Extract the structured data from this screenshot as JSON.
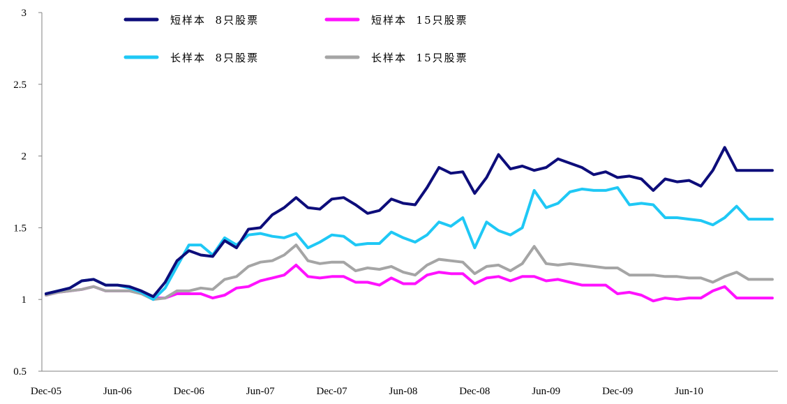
{
  "chart_data": {
    "type": "line",
    "title": "",
    "xlabel": "",
    "ylabel": "",
    "ylim": [
      0.5,
      3
    ],
    "yticks": [
      "3",
      "2.5",
      "2",
      "1.5",
      "1",
      "0.5"
    ],
    "xticks": [
      "Dec-05",
      "Jun-06",
      "Dec-06",
      "Jun-07",
      "Dec-07",
      "Jun-08",
      "Dec-08",
      "Jun-09",
      "Dec-09",
      "Jun-10"
    ],
    "grid": false,
    "legend_position": "top",
    "x": [
      0,
      1,
      2,
      3,
      4,
      5,
      6,
      7,
      8,
      9,
      10,
      11,
      12,
      13,
      14,
      15,
      16,
      17,
      18,
      19,
      20,
      21,
      22,
      23,
      24,
      25,
      26,
      27,
      28,
      29,
      30,
      31,
      32,
      33,
      34,
      35,
      36,
      37,
      38,
      39,
      40,
      41,
      42,
      43,
      44,
      45,
      46,
      47,
      48,
      49,
      50,
      51,
      52,
      53,
      54,
      55,
      56,
      57,
      58,
      59,
      60,
      61
    ],
    "series": [
      {
        "name": "短样本  8只股票",
        "color": "#0d0d7a",
        "values": [
          1.04,
          1.06,
          1.08,
          1.13,
          1.14,
          1.1,
          1.1,
          1.09,
          1.06,
          1.02,
          1.12,
          1.27,
          1.34,
          1.31,
          1.3,
          1.41,
          1.36,
          1.49,
          1.5,
          1.59,
          1.64,
          1.71,
          1.64,
          1.63,
          1.7,
          1.71,
          1.66,
          1.6,
          1.62,
          1.7,
          1.67,
          1.66,
          1.78,
          1.92,
          1.88,
          1.89,
          1.74,
          1.85,
          2.01,
          1.91,
          1.93,
          1.9,
          1.92,
          1.98,
          1.95,
          1.92,
          1.87,
          1.89,
          1.85,
          1.86,
          1.84,
          1.76,
          1.84,
          1.82,
          1.83,
          1.79,
          1.9,
          2.06,
          1.9,
          1.9,
          1.9,
          1.9
        ]
      },
      {
        "name": "短样本  15只股票",
        "color": "#ff12ff",
        "values": [
          1.03,
          1.05,
          1.06,
          1.07,
          1.09,
          1.06,
          1.06,
          1.06,
          1.05,
          1.01,
          1.01,
          1.04,
          1.04,
          1.04,
          1.01,
          1.03,
          1.08,
          1.09,
          1.13,
          1.15,
          1.17,
          1.24,
          1.16,
          1.15,
          1.16,
          1.16,
          1.12,
          1.12,
          1.1,
          1.15,
          1.11,
          1.11,
          1.17,
          1.19,
          1.18,
          1.18,
          1.11,
          1.15,
          1.16,
          1.13,
          1.16,
          1.16,
          1.13,
          1.14,
          1.12,
          1.1,
          1.1,
          1.1,
          1.04,
          1.05,
          1.03,
          0.99,
          1.01,
          1.0,
          1.01,
          1.01,
          1.06,
          1.09,
          1.01,
          1.01,
          1.01,
          1.01
        ]
      },
      {
        "name": "长样本  8只股票",
        "color": "#1fc8f5",
        "values": [
          1.04,
          1.06,
          1.08,
          1.13,
          1.14,
          1.1,
          1.1,
          1.08,
          1.05,
          1.0,
          1.08,
          1.23,
          1.38,
          1.38,
          1.31,
          1.43,
          1.38,
          1.45,
          1.46,
          1.44,
          1.43,
          1.46,
          1.36,
          1.4,
          1.45,
          1.44,
          1.38,
          1.39,
          1.39,
          1.47,
          1.43,
          1.4,
          1.45,
          1.54,
          1.51,
          1.57,
          1.36,
          1.54,
          1.48,
          1.45,
          1.5,
          1.76,
          1.64,
          1.67,
          1.75,
          1.77,
          1.76,
          1.76,
          1.78,
          1.66,
          1.67,
          1.66,
          1.57,
          1.57,
          1.56,
          1.55,
          1.52,
          1.57,
          1.65,
          1.56,
          1.56,
          1.56
        ]
      },
      {
        "name": "长样本  15只股票",
        "color": "#a5a5a5",
        "values": [
          1.03,
          1.05,
          1.06,
          1.07,
          1.09,
          1.06,
          1.06,
          1.06,
          1.04,
          1.0,
          1.01,
          1.06,
          1.06,
          1.08,
          1.07,
          1.14,
          1.16,
          1.23,
          1.26,
          1.27,
          1.31,
          1.38,
          1.27,
          1.25,
          1.26,
          1.26,
          1.2,
          1.22,
          1.21,
          1.23,
          1.19,
          1.17,
          1.24,
          1.28,
          1.27,
          1.26,
          1.18,
          1.23,
          1.24,
          1.2,
          1.25,
          1.37,
          1.25,
          1.24,
          1.25,
          1.24,
          1.23,
          1.22,
          1.22,
          1.17,
          1.17,
          1.17,
          1.16,
          1.16,
          1.15,
          1.15,
          1.12,
          1.16,
          1.19,
          1.14,
          1.14,
          1.14
        ]
      }
    ]
  }
}
